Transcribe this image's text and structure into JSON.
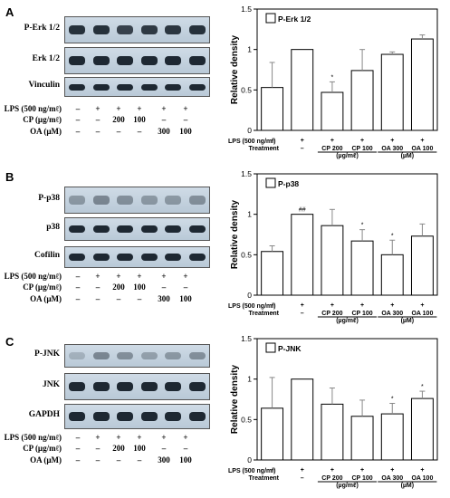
{
  "panels": [
    {
      "letter": "A",
      "blots": [
        {
          "label": "P-Erk 1/2",
          "intensity": [
            0.95,
            0.95,
            0.85,
            0.9,
            0.92,
            0.95
          ]
        },
        {
          "label": "Erk 1/2",
          "intensity": [
            1,
            1,
            1,
            1,
            1,
            1
          ]
        },
        {
          "label": "Vinculin",
          "intensity": [
            1,
            1,
            1,
            1,
            1,
            1
          ]
        }
      ],
      "table": [
        {
          "label": "LPS (500 ng/mℓ)",
          "cells": [
            "–",
            "+",
            "+",
            "+",
            "+",
            "+"
          ]
        },
        {
          "label": "CP (µg/mℓ)",
          "cells": [
            "–",
            "–",
            "200",
            "100",
            "–",
            "–"
          ]
        },
        {
          "label": "OA (µM)",
          "cells": [
            "–",
            "–",
            "–",
            "–",
            "300",
            "100"
          ]
        }
      ]
    },
    {
      "letter": "B",
      "blots": [
        {
          "label": "P-p38",
          "intensity": [
            0.35,
            0.45,
            0.4,
            0.35,
            0.35,
            0.4
          ]
        },
        {
          "label": "p38",
          "intensity": [
            1,
            1,
            1,
            1,
            1,
            1
          ]
        },
        {
          "label": "Cofilin",
          "intensity": [
            1,
            1,
            1,
            1,
            1,
            1
          ]
        }
      ],
      "table": [
        {
          "label": "LPS (500 ng/mℓ)",
          "cells": [
            "–",
            "+",
            "+",
            "+",
            "+",
            "+"
          ]
        },
        {
          "label": "CP (µg/mℓ)",
          "cells": [
            "–",
            "–",
            "200",
            "100",
            "–",
            "–"
          ]
        },
        {
          "label": "OA (µM)",
          "cells": [
            "–",
            "–",
            "–",
            "–",
            "300",
            "100"
          ]
        }
      ]
    },
    {
      "letter": "C",
      "blots": [
        {
          "label": "P-JNK",
          "intensity": [
            0.2,
            0.45,
            0.4,
            0.3,
            0.35,
            0.4
          ]
        },
        {
          "label": "JNK",
          "intensity": [
            1,
            1,
            1,
            1,
            1,
            1
          ]
        },
        {
          "label": "GAPDH",
          "intensity": [
            1,
            1,
            1,
            1,
            1,
            1
          ]
        }
      ],
      "table": [
        {
          "label": "LPS (500 ng/mℓ)",
          "cells": [
            "–",
            "+",
            "+",
            "+",
            "+",
            "+"
          ]
        },
        {
          "label": "CP (µg/mℓ)",
          "cells": [
            "–",
            "–",
            "200",
            "100",
            "–",
            "–"
          ]
        },
        {
          "label": "OA (µM)",
          "cells": [
            "–",
            "–",
            "–",
            "–",
            "300",
            "100"
          ]
        }
      ]
    }
  ],
  "chart_data": [
    {
      "type": "bar",
      "legend": "P-Erk 1/2",
      "ylabel": "Relative density",
      "ylim": [
        0,
        1.5
      ],
      "yticks": [
        "0",
        "0.5",
        "1",
        "1.5"
      ],
      "values": [
        0.53,
        1.0,
        0.47,
        0.74,
        0.94,
        1.13
      ],
      "errors": [
        0.31,
        0.0,
        0.13,
        0.26,
        0.03,
        0.05
      ],
      "annotations": [
        "",
        "",
        "*",
        "",
        "",
        ""
      ],
      "lps_row": [
        "–",
        "+",
        "+",
        "+",
        "+",
        "+"
      ],
      "treatment_row": [
        "–",
        "–",
        "CP 200",
        "CP 100",
        "OA 300",
        "OA 100"
      ],
      "row_labels": {
        "lps": "LPS (500 ng/ml)",
        "treatment": "Treatment"
      },
      "units": {
        "cp": "(µg/mℓ)",
        "oa": "(µM)"
      }
    },
    {
      "type": "bar",
      "legend": "P-p38",
      "ylabel": "Relative density",
      "ylim": [
        0,
        1.5
      ],
      "yticks": [
        "0",
        "0.5",
        "1",
        "1.5"
      ],
      "values": [
        0.54,
        1.0,
        0.86,
        0.67,
        0.5,
        0.73
      ],
      "errors": [
        0.07,
        0.0,
        0.2,
        0.14,
        0.18,
        0.15
      ],
      "annotations": [
        "",
        "##",
        "",
        "*",
        "*",
        ""
      ],
      "lps_row": [
        "–",
        "+",
        "+",
        "+",
        "+",
        "+"
      ],
      "treatment_row": [
        "–",
        "–",
        "CP 200",
        "CP 100",
        "OA 300",
        "OA 100"
      ],
      "row_labels": {
        "lps": "LPS (500 ng/ml)",
        "treatment": "Treatment"
      },
      "units": {
        "cp": "(µg/mℓ)",
        "oa": "(µM)"
      }
    },
    {
      "type": "bar",
      "legend": "P-JNK",
      "ylabel": "Relative density",
      "ylim": [
        0,
        1.5
      ],
      "yticks": [
        "0",
        "0.5",
        "1",
        "1.5"
      ],
      "values": [
        0.64,
        1.0,
        0.69,
        0.54,
        0.57,
        0.76
      ],
      "errors": [
        0.38,
        0.0,
        0.2,
        0.2,
        0.13,
        0.09
      ],
      "annotations": [
        "",
        "",
        "",
        "",
        "*",
        "*"
      ],
      "lps_row": [
        "–",
        "+",
        "+",
        "+",
        "+",
        "+"
      ],
      "treatment_row": [
        "–",
        "–",
        "CP 200",
        "CP 100",
        "OA 300",
        "OA 100"
      ],
      "row_labels": {
        "lps": "LPS (500 ng/ml)",
        "treatment": "Treatment"
      },
      "units": {
        "cp": "(µg/mℓ)",
        "oa": "(µM)"
      }
    }
  ]
}
